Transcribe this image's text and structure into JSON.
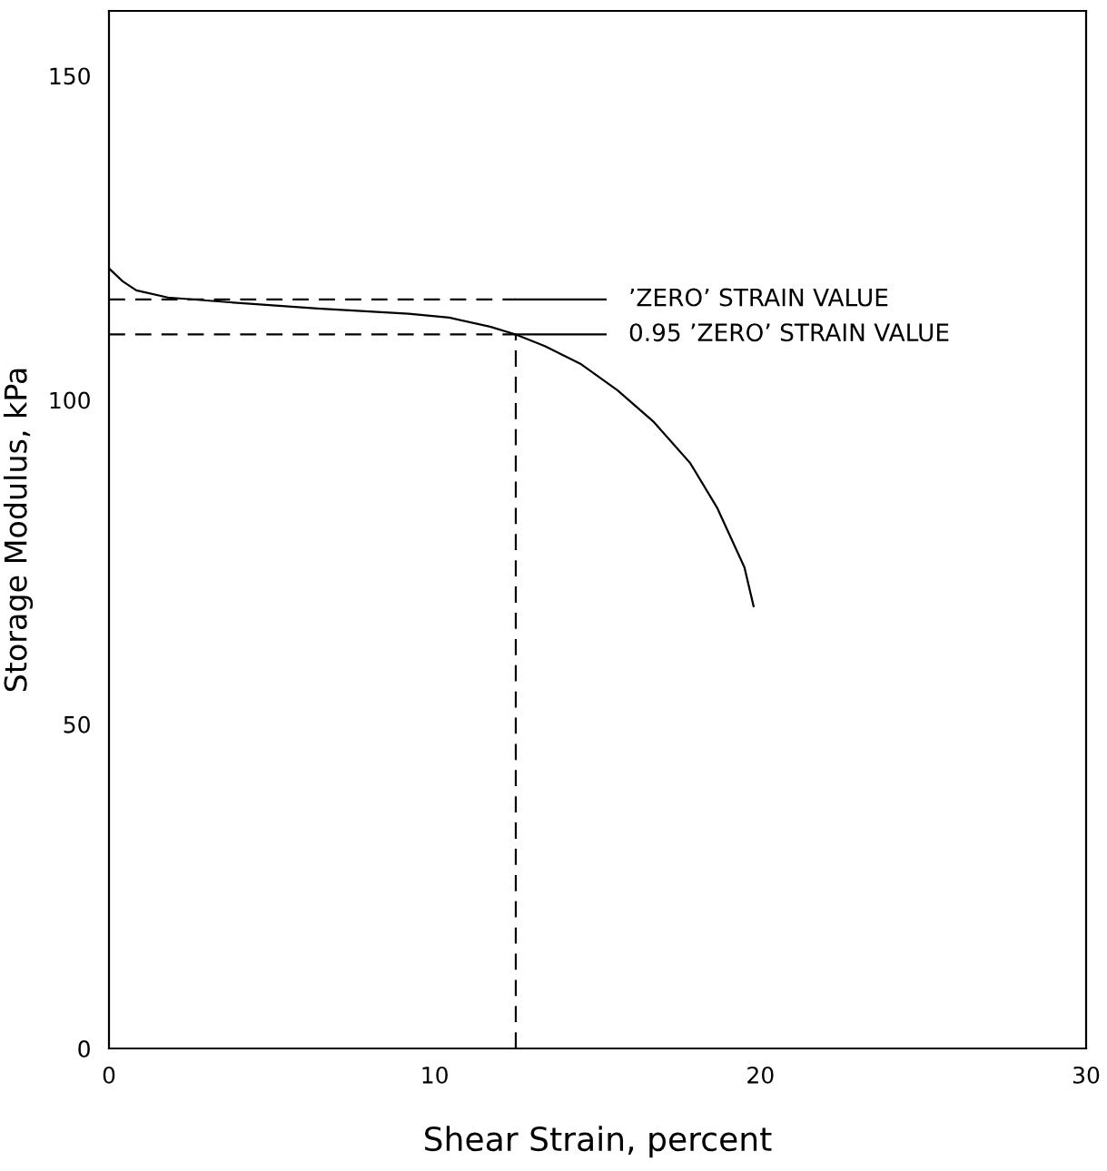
{
  "chart_data": {
    "type": "line",
    "xlabel": "Shear Strain, percent",
    "ylabel": "Storage Modulus, kPa",
    "xlim": [
      0,
      30
    ],
    "ylim": [
      0,
      160
    ],
    "xticks": [
      0,
      10,
      20,
      30
    ],
    "yticks": [
      0,
      50,
      100,
      150
    ],
    "grid": false,
    "legend": false,
    "marker": "none",
    "series": [
      {
        "color": "#000000",
        "line_style": "solid",
        "x": [
          0,
          0.42,
          0.84,
          1.81,
          3.62,
          6.41,
          9.2,
          10.45,
          11.7,
          12.49,
          13.38,
          14.5,
          15.61,
          16.73,
          17.84,
          18.68,
          19.51,
          19.79
        ],
        "values": [
          120.3,
          118.3,
          116.9,
          115.8,
          115.1,
          114.1,
          113.3,
          112.7,
          111.3,
          110.1,
          108.3,
          105.5,
          101.5,
          96.6,
          90.3,
          83.3,
          74.2,
          68.2
        ]
      },
      {
        "color": "#000000",
        "line_style": "dashed",
        "x": [
          0,
          12.49
        ],
        "values": [
          115.5,
          115.5
        ]
      },
      {
        "color": "#000000",
        "line_style": "solid",
        "x": [
          12.49,
          15.25
        ],
        "values": [
          115.5,
          115.5
        ]
      },
      {
        "color": "#000000",
        "line_style": "dashed",
        "x": [
          0,
          12.49
        ],
        "values": [
          110.1,
          110.1
        ]
      },
      {
        "color": "#000000",
        "line_style": "solid",
        "x": [
          12.49,
          15.25
        ],
        "values": [
          110.1,
          110.1
        ]
      },
      {
        "color": "#000000",
        "line_style": "dashed",
        "x": [
          12.49,
          12.49
        ],
        "values": [
          0,
          110.1
        ]
      }
    ],
    "annotations": [
      {
        "text": "’ZERO’ STRAIN VALUE",
        "x": 15.25,
        "y": 115.5
      },
      {
        "text": "0.95 ’ZERO’ STRAIN VALUE",
        "x": 15.25,
        "y": 110.1
      }
    ]
  }
}
